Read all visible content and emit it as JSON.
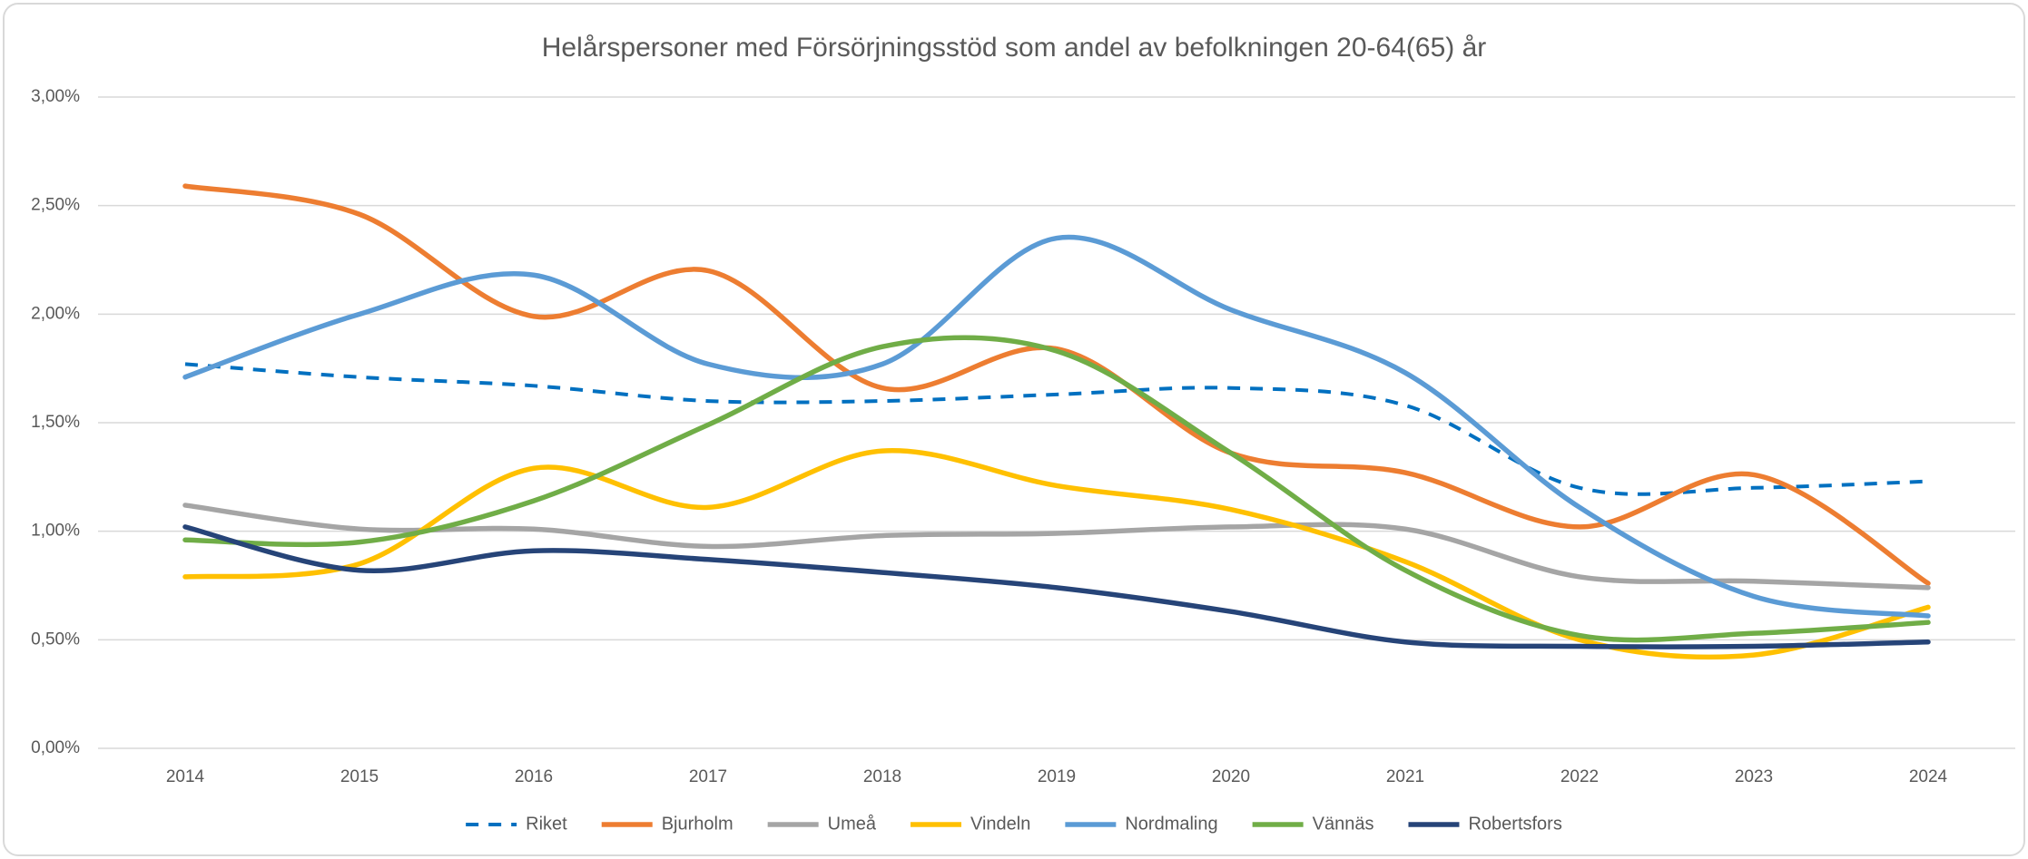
{
  "chart_data": {
    "type": "line",
    "title": "Helårspersoner med Försörjningsstöd som andel av befolkningen 20-64(65) år",
    "categories": [
      "2014",
      "2015",
      "2016",
      "2017",
      "2018",
      "2019",
      "2020",
      "2021",
      "2022",
      "2023",
      "2024"
    ],
    "ylim": [
      0,
      3
    ],
    "yticks": [
      {
        "value": 0,
        "label": "0,00%"
      },
      {
        "value": 0.5,
        "label": "0,50%"
      },
      {
        "value": 1,
        "label": "1,00%"
      },
      {
        "value": 1.5,
        "label": "1,50%"
      },
      {
        "value": 2,
        "label": "2,00%"
      },
      {
        "value": 2.5,
        "label": "2,50%"
      },
      {
        "value": 3,
        "label": "3,00%"
      }
    ],
    "grid": true,
    "smooth": true,
    "legend": "bottom",
    "series": [
      {
        "name": "Riket",
        "color": "#0070c0",
        "dashed": true,
        "values": [
          1.77,
          1.71,
          1.67,
          1.6,
          1.6,
          1.63,
          1.66,
          1.58,
          1.2,
          1.2,
          1.23
        ]
      },
      {
        "name": "Bjurholm",
        "color": "#ed7d31",
        "values": [
          2.59,
          2.46,
          1.99,
          2.2,
          1.66,
          1.84,
          1.36,
          1.27,
          1.02,
          1.26,
          0.76
        ]
      },
      {
        "name": "Umeå",
        "color": "#a5a5a5",
        "values": [
          1.12,
          1.01,
          1.01,
          0.93,
          0.98,
          0.99,
          1.02,
          1.01,
          0.79,
          0.77,
          0.74
        ]
      },
      {
        "name": "Vindeln",
        "color": "#ffc000",
        "values": [
          0.79,
          0.85,
          1.29,
          1.11,
          1.37,
          1.21,
          1.1,
          0.86,
          0.5,
          0.43,
          0.65
        ]
      },
      {
        "name": "Nordmaling",
        "color": "#5b9bd5",
        "values": [
          1.71,
          2.0,
          2.18,
          1.77,
          1.77,
          2.35,
          2.02,
          1.73,
          1.11,
          0.7,
          0.61
        ]
      },
      {
        "name": "Vännäs",
        "color": "#70ad47",
        "values": [
          0.96,
          0.95,
          1.14,
          1.49,
          1.85,
          1.83,
          1.36,
          0.82,
          0.52,
          0.53,
          0.58
        ]
      },
      {
        "name": "Robertsfors",
        "color": "#264478",
        "values": [
          1.02,
          0.82,
          0.91,
          0.87,
          0.81,
          0.74,
          0.63,
          0.49,
          0.47,
          0.47,
          0.49
        ]
      }
    ]
  }
}
